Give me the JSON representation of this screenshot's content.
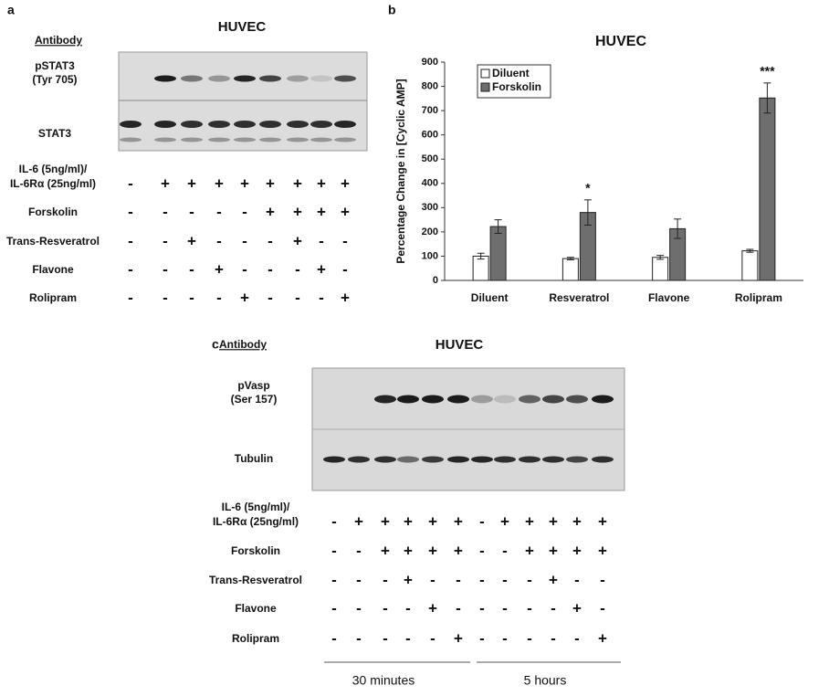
{
  "panel_a": {
    "label": "a",
    "title": "HUVEC",
    "antibody_header": "Antibody",
    "antibodies": [
      [
        "pSTAT3",
        "(Tyr 705)"
      ],
      [
        "STAT3"
      ]
    ],
    "treatments": [
      {
        "label": [
          "IL-6 (5ng/ml)/",
          "IL-6Rα (25ng/ml)"
        ],
        "signs": [
          "-",
          "+",
          "+",
          "+",
          "+",
          "+",
          "+",
          "+",
          "+"
        ]
      },
      {
        "label": [
          "Forskolin"
        ],
        "signs": [
          "-",
          "-",
          "-",
          "-",
          "-",
          "+",
          "+",
          "+",
          "+"
        ]
      },
      {
        "label": [
          "Trans-Resveratrol"
        ],
        "signs": [
          "-",
          "-",
          "+",
          "-",
          "-",
          "-",
          "+",
          "-",
          "-"
        ]
      },
      {
        "label": [
          "Flavone"
        ],
        "signs": [
          "-",
          "-",
          "-",
          "+",
          "-",
          "-",
          "-",
          "+",
          "-"
        ]
      },
      {
        "label": [
          "Rolipram"
        ],
        "signs": [
          "-",
          "-",
          "-",
          "-",
          "+",
          "-",
          "-",
          "-",
          "+"
        ]
      }
    ]
  },
  "chart_data": {
    "type": "bar",
    "panel_label": "b",
    "title": "HUVEC",
    "y_label": "Percentage Change in [Cyclic AMP]",
    "categories": [
      "Diluent",
      "Resveratrol",
      "Flavone",
      "Rolipram"
    ],
    "series": [
      {
        "name": "Diluent",
        "color": "#ffffff",
        "values": [
          100,
          90,
          95,
          122
        ],
        "errors": [
          12,
          5,
          8,
          6
        ]
      },
      {
        "name": "Forskolin",
        "color": "#6e6e6e",
        "values": [
          222,
          280,
          213,
          752
        ],
        "errors": [
          28,
          52,
          40,
          62
        ]
      }
    ],
    "annotations": [
      null,
      "*",
      null,
      "***"
    ],
    "ylim": [
      0,
      900
    ],
    "yticks": [
      0,
      100,
      200,
      300,
      400,
      500,
      600,
      700,
      800,
      900
    ],
    "grid": false,
    "legend": "upper left"
  },
  "panel_c": {
    "label": "c",
    "title": "HUVEC",
    "antibody_header": "Antibody",
    "antibodies": [
      [
        "pVasp",
        "(Ser 157)"
      ],
      [
        "Tubulin"
      ]
    ],
    "treatments": [
      {
        "label": [
          "IL-6 (5ng/ml)/",
          "IL-6Rα (25ng/ml)"
        ],
        "signs": [
          "-",
          "+",
          "+",
          "+",
          "+",
          "+",
          "-",
          "+",
          "+",
          "+",
          "+",
          "+"
        ]
      },
      {
        "label": [
          "Forskolin"
        ],
        "signs": [
          "-",
          "-",
          "+",
          "+",
          "+",
          "+",
          "-",
          "-",
          "+",
          "+",
          "+",
          "+"
        ]
      },
      {
        "label": [
          "Trans-Resveratrol"
        ],
        "signs": [
          "-",
          "-",
          "-",
          "+",
          "-",
          "-",
          "-",
          "-",
          "-",
          "+",
          "-",
          "-"
        ]
      },
      {
        "label": [
          "Flavone"
        ],
        "signs": [
          "-",
          "-",
          "-",
          "-",
          "+",
          "-",
          "-",
          "-",
          "-",
          "-",
          "+",
          "-"
        ]
      },
      {
        "label": [
          "Rolipram"
        ],
        "signs": [
          "-",
          "-",
          "-",
          "-",
          "-",
          "+",
          "-",
          "-",
          "-",
          "-",
          "-",
          "+"
        ]
      }
    ],
    "time_groups": [
      "30 minutes",
      "5 hours"
    ]
  }
}
